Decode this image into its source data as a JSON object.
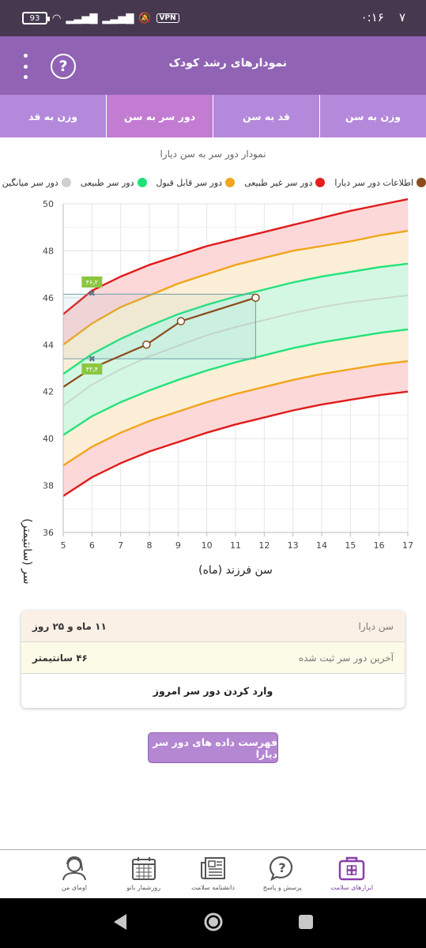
{
  "status_bar": {
    "time": "۰:۱۶",
    "notification_digit": "۷",
    "battery": "93",
    "vpn": "VPN"
  },
  "app_bar": {
    "title": "نمودارهای رشد کودک",
    "help_glyph": "?"
  },
  "tabs": [
    {
      "label": "وزن به سن",
      "active": false
    },
    {
      "label": "قد به سن",
      "active": false
    },
    {
      "label": "دور سر به سن",
      "active": true
    },
    {
      "label": "وزن به قد",
      "active": false
    }
  ],
  "chart_title": "نمودار دور سر به سن دیارا",
  "legend": [
    {
      "label": "اطلاعات دور سر دیارا",
      "color": "#8b4a1c"
    },
    {
      "label": "دور سر غیر طبیعی",
      "color": "#e61e1e"
    },
    {
      "label": "دور سر قابل قبول",
      "color": "#f2a51a"
    },
    {
      "label": "دور سر طبیعی",
      "color": "#1ee27a"
    },
    {
      "label": "دور سر میانگین",
      "color": "#cfcfcf"
    }
  ],
  "chart_data": {
    "type": "line",
    "xlabel": "سن فرزند (ماه)",
    "ylabel": "دور سر (سانتیمتر)",
    "xlim": [
      5,
      17
    ],
    "ylim": [
      36,
      50
    ],
    "x_ticks": [
      "5",
      "6",
      "7",
      "8",
      "9",
      "10",
      "11",
      "12",
      "13",
      "14",
      "15",
      "16",
      "17"
    ],
    "y_ticks": [
      "36",
      "38",
      "40",
      "42",
      "44",
      "46",
      "48",
      "50"
    ],
    "grid": true,
    "reference_x": [
      5,
      6,
      7,
      8,
      9,
      10,
      11,
      12,
      13,
      14,
      15,
      16,
      17
    ],
    "reference_series": [
      {
        "name": "upper-abnormal",
        "color": "#e01b1b",
        "values": [
          45.3,
          46.3,
          46.9,
          47.4,
          47.8,
          48.2,
          48.5,
          48.8,
          49.1,
          49.4,
          49.7,
          49.95,
          50.2
        ]
      },
      {
        "name": "upper-acceptable",
        "color": "#f2a51a",
        "values": [
          44.0,
          44.9,
          45.6,
          46.1,
          46.6,
          47.0,
          47.4,
          47.7,
          48.0,
          48.2,
          48.4,
          48.65,
          48.85
        ]
      },
      {
        "name": "upper-normal",
        "color": "#22e27a",
        "values": [
          42.75,
          43.6,
          44.25,
          44.8,
          45.3,
          45.7,
          46.05,
          46.35,
          46.65,
          46.9,
          47.1,
          47.3,
          47.45
        ]
      },
      {
        "name": "mean",
        "color": "#c9d8cc",
        "values": [
          41.4,
          42.3,
          42.95,
          43.5,
          43.95,
          44.4,
          44.75,
          45.05,
          45.35,
          45.6,
          45.8,
          45.95,
          46.1
        ]
      },
      {
        "name": "lower-normal",
        "color": "#22e27a",
        "values": [
          40.15,
          40.95,
          41.55,
          42.05,
          42.5,
          42.9,
          43.25,
          43.55,
          43.85,
          44.1,
          44.3,
          44.5,
          44.65
        ]
      },
      {
        "name": "lower-acceptable",
        "color": "#f2a51a",
        "values": [
          38.85,
          39.65,
          40.25,
          40.75,
          41.15,
          41.55,
          41.9,
          42.2,
          42.5,
          42.75,
          42.95,
          43.15,
          43.3
        ]
      },
      {
        "name": "lower-abnormal",
        "color": "#e01b1b",
        "values": [
          37.55,
          38.35,
          38.95,
          39.45,
          39.85,
          40.25,
          40.6,
          40.9,
          41.2,
          41.45,
          41.65,
          41.85,
          42.0
        ]
      }
    ],
    "child_series": {
      "color": "#8b4a1c",
      "points": [
        {
          "x": 5,
          "y": 42.2
        },
        {
          "x": 6,
          "y": 43.0
        },
        {
          "x": 7.9,
          "y": 44.0
        },
        {
          "x": 9.1,
          "y": 45.0
        },
        {
          "x": 11.7,
          "y": 46.0
        }
      ],
      "marked_points": [
        {
          "x": 7.9,
          "y": 44.0
        },
        {
          "x": 9.1,
          "y": 45.0
        },
        {
          "x": 11.7,
          "y": 46.0
        }
      ]
    },
    "range_box": {
      "x_from": 5,
      "x_to": 11.7,
      "y_from": 43.4,
      "y_to": 46.15
    },
    "badges": [
      {
        "x": 6,
        "y": 46.2,
        "label": "۴۶٫۲"
      },
      {
        "x": 6,
        "y": 43.4,
        "label": "۴۳٫۴"
      }
    ]
  },
  "info_card": {
    "age_label": "سن دیارا",
    "age_value": "۱۱ ماه و ۲۵ روز",
    "last_label": "آخرین دور سر ثبت شده",
    "last_value": "۴۶ سانتیمتر",
    "enter_action": "وارد کردن دور سر امروز"
  },
  "list_button": "فهرست داده های دور سر دیارا",
  "bottom_nav": [
    {
      "label": "ابزارهای سلامت",
      "icon": "medical-kit-icon",
      "active": true
    },
    {
      "label": "پرسش و پاسخ",
      "icon": "question-bubble-icon",
      "active": false
    },
    {
      "label": "دانشنامه سلامت",
      "icon": "newspaper-icon",
      "active": false
    },
    {
      "label": "روزشمار بانو",
      "icon": "calendar-icon",
      "active": false
    },
    {
      "label": "اومای من",
      "icon": "user-avatar-icon",
      "active": false
    }
  ]
}
